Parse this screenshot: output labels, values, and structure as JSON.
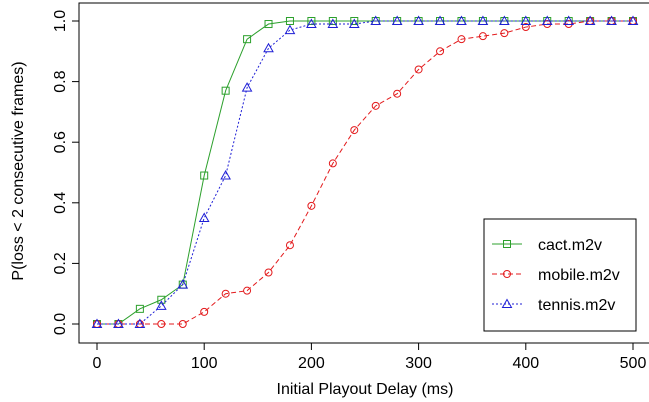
{
  "chart_data": {
    "type": "line",
    "title": "",
    "xlabel": "Initial Playout Delay (ms)",
    "ylabel": "P(loss < 2 consecutive frames)",
    "xlim": [
      0,
      500
    ],
    "ylim": [
      0,
      1
    ],
    "x_ticks": [
      0,
      100,
      200,
      300,
      400,
      500
    ],
    "y_ticks": [
      0.0,
      0.2,
      0.4,
      0.6,
      0.8,
      1.0
    ],
    "x_tick_labels": [
      "0",
      "100",
      "200",
      "300",
      "400",
      "500"
    ],
    "y_tick_labels": [
      "0.0",
      "0.2",
      "0.4",
      "0.6",
      "0.8",
      "1.0"
    ],
    "grid": false,
    "legend_position": "bottom-right",
    "x": [
      0,
      20,
      40,
      60,
      80,
      100,
      120,
      140,
      160,
      180,
      200,
      220,
      240,
      260,
      280,
      300,
      320,
      340,
      360,
      380,
      400,
      420,
      440,
      460,
      480,
      500
    ],
    "series": [
      {
        "name": "cact.m2v",
        "color": "#2ca02c",
        "marker": "square",
        "line": "solid",
        "values": [
          0.0,
          0.0,
          0.05,
          0.08,
          0.13,
          0.49,
          0.77,
          0.94,
          0.99,
          1.0,
          1.0,
          1.0,
          1.0,
          1.0,
          1.0,
          1.0,
          1.0,
          1.0,
          1.0,
          1.0,
          1.0,
          1.0,
          1.0,
          1.0,
          1.0,
          1.0
        ]
      },
      {
        "name": "mobile.m2v",
        "color": "#e31a1c",
        "marker": "circle",
        "line": "dashed",
        "values": [
          0.0,
          0.0,
          0.0,
          0.0,
          0.0,
          0.04,
          0.1,
          0.11,
          0.17,
          0.26,
          0.39,
          0.53,
          0.64,
          0.72,
          0.76,
          0.84,
          0.9,
          0.94,
          0.95,
          0.96,
          0.98,
          0.99,
          0.99,
          1.0,
          1.0,
          1.0
        ]
      },
      {
        "name": "tennis.m2v",
        "color": "#1f1fd6",
        "marker": "triangle",
        "line": "dotted",
        "values": [
          0.0,
          0.0,
          0.0,
          0.06,
          0.13,
          0.35,
          0.49,
          0.78,
          0.91,
          0.97,
          0.99,
          0.99,
          0.99,
          1.0,
          1.0,
          1.0,
          1.0,
          1.0,
          1.0,
          1.0,
          1.0,
          1.0,
          1.0,
          1.0,
          1.0,
          1.0
        ]
      }
    ]
  }
}
